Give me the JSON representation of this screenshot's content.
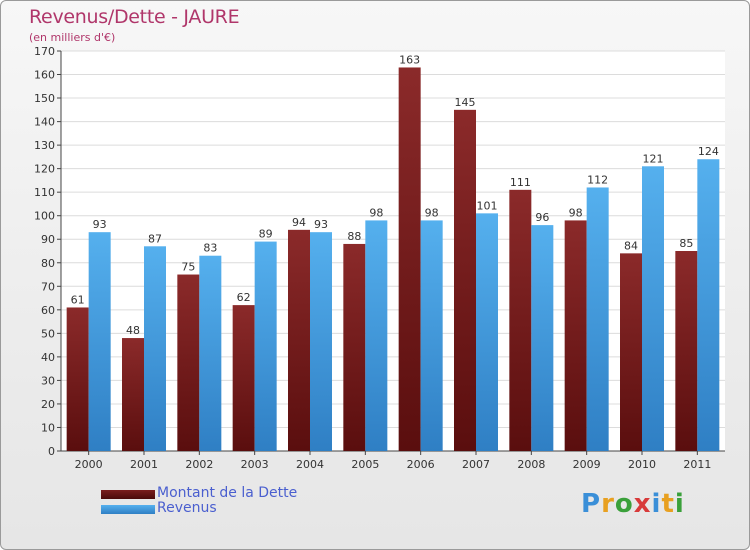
{
  "header": {
    "title": "Revenus/Dette - JAURE",
    "subtitle": "(en milliers d'€)"
  },
  "legend": {
    "debt_label": "Montant de la Dette",
    "revenue_label": "Revenus"
  },
  "logo": {
    "letters": [
      "P",
      "r",
      "o",
      "x",
      "i",
      "t",
      "i"
    ],
    "colors": [
      "#3a8fd8",
      "#e8a020",
      "#3aa03a",
      "#d83a3a",
      "#3a8fd8",
      "#e8a020",
      "#3aa03a"
    ]
  },
  "colors": {
    "debt": "#7a1e1e",
    "debt_dark": "#4a0a0a",
    "revenue": "#4ba5e6",
    "revenue_dark": "#2a78bd"
  },
  "chart_data": {
    "type": "bar",
    "categories": [
      "2000",
      "2001",
      "2002",
      "2003",
      "2004",
      "2005",
      "2006",
      "2007",
      "2008",
      "2009",
      "2010",
      "2011"
    ],
    "series": [
      {
        "name": "Montant de la Dette",
        "values": [
          61,
          48,
          75,
          62,
          94,
          88,
          163,
          145,
          111,
          98,
          84,
          85
        ]
      },
      {
        "name": "Revenus",
        "values": [
          93,
          87,
          83,
          89,
          93,
          98,
          98,
          101,
          96,
          112,
          121,
          124
        ]
      }
    ],
    "ylim": [
      0,
      170
    ],
    "ytick_step": 10,
    "grid": true
  }
}
